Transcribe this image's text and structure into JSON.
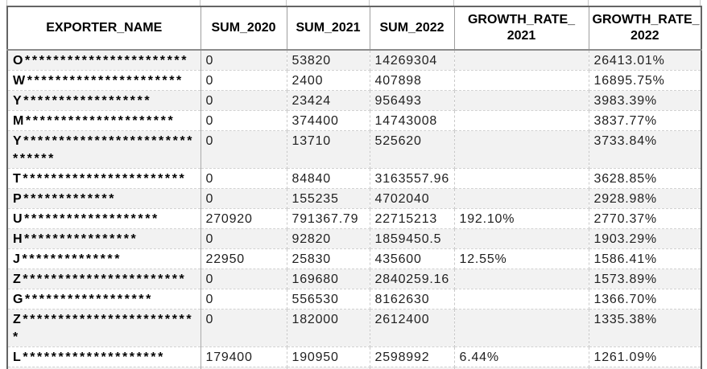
{
  "table": {
    "columns": [
      {
        "key": "exporter",
        "label_lines": [
          "EXPORTER_NAME"
        ]
      },
      {
        "key": "sum_2020",
        "label_lines": [
          "SUM_2020"
        ]
      },
      {
        "key": "sum_2021",
        "label_lines": [
          "SUM_2021"
        ]
      },
      {
        "key": "sum_2022",
        "label_lines": [
          "SUM_2022"
        ]
      },
      {
        "key": "growth_2021",
        "label_lines": [
          "GROWTH_RATE_",
          "2021"
        ]
      },
      {
        "key": "growth_2022",
        "label_lines": [
          "GROWTH_RATE_",
          "2022"
        ]
      }
    ],
    "rows": [
      {
        "exporter": "O***********************",
        "sum_2020": "0",
        "sum_2021": "53820",
        "sum_2022": "14269304",
        "growth_2021": "",
        "growth_2022": "26413.01%"
      },
      {
        "exporter": "W**********************",
        "sum_2020": "0",
        "sum_2021": "2400",
        "sum_2022": "407898",
        "growth_2021": "",
        "growth_2022": "16895.75%"
      },
      {
        "exporter": "Y******************",
        "sum_2020": "0",
        "sum_2021": "23424",
        "sum_2022": "956493",
        "growth_2021": "",
        "growth_2022": "3983.39%"
      },
      {
        "exporter": "M*********************",
        "sum_2020": "0",
        "sum_2021": "374400",
        "sum_2022": "14743008",
        "growth_2021": "",
        "growth_2022": "3837.77%"
      },
      {
        "exporter": "Y******************************",
        "sum_2020": "0",
        "sum_2021": "13710",
        "sum_2022": "525620",
        "growth_2021": "",
        "growth_2022": "3733.84%"
      },
      {
        "exporter": "T***********************",
        "sum_2020": "0",
        "sum_2021": "84840",
        "sum_2022": "3163557.96",
        "growth_2021": "",
        "growth_2022": "3628.85%"
      },
      {
        "exporter": "P*************",
        "sum_2020": "0",
        "sum_2021": "155235",
        "sum_2022": "4702040",
        "growth_2021": "",
        "growth_2022": "2928.98%"
      },
      {
        "exporter": "U*******************",
        "sum_2020": "270920",
        "sum_2021": "791367.79",
        "sum_2022": "22715213",
        "growth_2021": "192.10%",
        "growth_2022": "2770.37%"
      },
      {
        "exporter": "H****************",
        "sum_2020": "0",
        "sum_2021": "92820",
        "sum_2022": "1859450.5",
        "growth_2021": "",
        "growth_2022": "1903.29%"
      },
      {
        "exporter": "J**************",
        "sum_2020": "22950",
        "sum_2021": "25830",
        "sum_2022": "435600",
        "growth_2021": "12.55%",
        "growth_2022": "1586.41%"
      },
      {
        "exporter": "Z***********************",
        "sum_2020": "0",
        "sum_2021": "169680",
        "sum_2022": "2840259.16",
        "growth_2021": "",
        "growth_2022": "1573.89%"
      },
      {
        "exporter": "G******************",
        "sum_2020": "0",
        "sum_2021": "556530",
        "sum_2022": "8162630",
        "growth_2021": "",
        "growth_2022": "1366.70%"
      },
      {
        "exporter": "Z*************************",
        "sum_2020": "0",
        "sum_2021": "182000",
        "sum_2022": "2612400",
        "growth_2021": "",
        "growth_2022": "1335.38%"
      },
      {
        "exporter": "L********************",
        "sum_2020": "179400",
        "sum_2021": "190950",
        "sum_2022": "2598992",
        "growth_2021": "6.44%",
        "growth_2022": "1261.09%"
      }
    ]
  },
  "colors": {
    "band_gray": "#f2f2f2",
    "row_white": "#ffffff",
    "outer_border": "#646464",
    "header_underline": "#8c8c8c",
    "grid_dashed": "#c9c9c9",
    "text": "#000000"
  },
  "layout_marks": {
    "tick_positions": [
      8,
      248,
      355,
      458,
      563,
      730,
      869
    ]
  }
}
